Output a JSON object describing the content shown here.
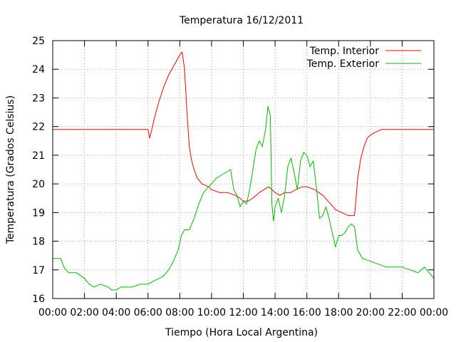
{
  "chart_data": {
    "type": "line",
    "title": "Temperatura 16/12/2011",
    "xlabel": "Tiempo (Hora Local Argentina)",
    "ylabel": "Temperatura (Grados Celsius)",
    "xlim": [
      0,
      24
    ],
    "ylim": [
      16,
      25
    ],
    "xticks": [
      "00:00",
      "02:00",
      "04:00",
      "06:00",
      "08:00",
      "10:00",
      "12:00",
      "14:00",
      "16:00",
      "18:00",
      "20:00",
      "22:00",
      "00:00"
    ],
    "yticks": [
      "16",
      "17",
      "18",
      "19",
      "20",
      "21",
      "22",
      "23",
      "24",
      "25"
    ],
    "grid": true,
    "legend_position": "top-right",
    "series": [
      {
        "name": "Temp. Interior",
        "color": "#ff0000",
        "x": [
          0.0,
          6.0,
          6.1,
          6.2,
          6.4,
          6.7,
          7.0,
          7.3,
          7.6,
          7.9,
          8.0,
          8.15,
          8.3,
          8.45,
          8.6,
          8.75,
          8.9,
          9.1,
          9.4,
          9.8,
          10.0,
          10.5,
          11.0,
          11.5,
          11.8,
          12.0,
          12.3,
          12.6,
          13.0,
          13.3,
          13.6,
          13.8,
          14.0,
          14.3,
          14.6,
          15.0,
          15.3,
          15.7,
          16.0,
          16.5,
          17.0,
          17.5,
          17.8,
          18.2,
          18.6,
          18.8,
          19.0,
          19.1,
          19.2,
          19.4,
          19.6,
          19.8,
          20.0,
          20.3,
          20.7,
          21.0,
          21.5,
          22.0,
          22.5,
          23.0,
          24.0
        ],
        "y": [
          21.9,
          21.9,
          21.6,
          21.8,
          22.3,
          22.9,
          23.4,
          23.8,
          24.1,
          24.4,
          24.5,
          24.6,
          24.0,
          22.5,
          21.3,
          20.8,
          20.5,
          20.2,
          20.0,
          19.9,
          19.8,
          19.7,
          19.7,
          19.6,
          19.5,
          19.4,
          19.4,
          19.5,
          19.7,
          19.8,
          19.9,
          19.8,
          19.7,
          19.6,
          19.7,
          19.7,
          19.8,
          19.9,
          19.9,
          19.8,
          19.6,
          19.3,
          19.1,
          19.0,
          18.9,
          18.9,
          18.9,
          19.5,
          20.2,
          20.9,
          21.3,
          21.6,
          21.7,
          21.8,
          21.9,
          21.9,
          21.9,
          21.9,
          21.9,
          21.9,
          21.9
        ]
      },
      {
        "name": "Temp. Exterior",
        "color": "#00bb00",
        "x": [
          0.0,
          0.5,
          0.7,
          1.0,
          1.5,
          2.0,
          2.3,
          2.6,
          3.0,
          3.5,
          3.7,
          4.0,
          4.3,
          4.7,
          5.0,
          5.5,
          6.0,
          6.3,
          6.7,
          7.0,
          7.3,
          7.6,
          7.9,
          8.1,
          8.3,
          8.6,
          8.9,
          9.2,
          9.5,
          9.8,
          10.0,
          10.3,
          10.6,
          10.9,
          11.2,
          11.4,
          11.6,
          11.8,
          12.0,
          12.2,
          12.4,
          12.6,
          12.8,
          13.0,
          13.2,
          13.4,
          13.55,
          13.7,
          13.8,
          13.9,
          14.0,
          14.2,
          14.4,
          14.6,
          14.8,
          15.0,
          15.2,
          15.4,
          15.6,
          15.8,
          16.0,
          16.2,
          16.4,
          16.6,
          16.8,
          17.0,
          17.2,
          17.4,
          17.6,
          17.8,
          18.0,
          18.2,
          18.4,
          18.6,
          18.8,
          19.0,
          19.2,
          19.5,
          20.0,
          20.5,
          21.0,
          21.5,
          22.0,
          22.5,
          23.0,
          23.4,
          23.7,
          24.0
        ],
        "y": [
          17.4,
          17.4,
          17.1,
          16.9,
          16.9,
          16.7,
          16.5,
          16.4,
          16.5,
          16.4,
          16.3,
          16.3,
          16.4,
          16.4,
          16.4,
          16.5,
          16.5,
          16.6,
          16.7,
          16.8,
          17.0,
          17.3,
          17.7,
          18.2,
          18.4,
          18.4,
          18.8,
          19.3,
          19.7,
          19.9,
          20.0,
          20.2,
          20.3,
          20.4,
          20.5,
          19.8,
          19.6,
          19.2,
          19.4,
          19.3,
          19.8,
          20.5,
          21.2,
          21.5,
          21.3,
          21.9,
          22.7,
          22.4,
          19.3,
          18.7,
          19.2,
          19.5,
          19.0,
          19.6,
          20.6,
          20.9,
          20.4,
          19.8,
          20.8,
          21.1,
          21.0,
          20.6,
          20.8,
          19.9,
          18.8,
          18.9,
          19.2,
          18.8,
          18.3,
          17.8,
          18.2,
          18.2,
          18.3,
          18.5,
          18.6,
          18.5,
          17.7,
          17.4,
          17.3,
          17.2,
          17.1,
          17.1,
          17.1,
          17.0,
          16.9,
          17.1,
          16.9,
          16.7
        ]
      }
    ]
  }
}
